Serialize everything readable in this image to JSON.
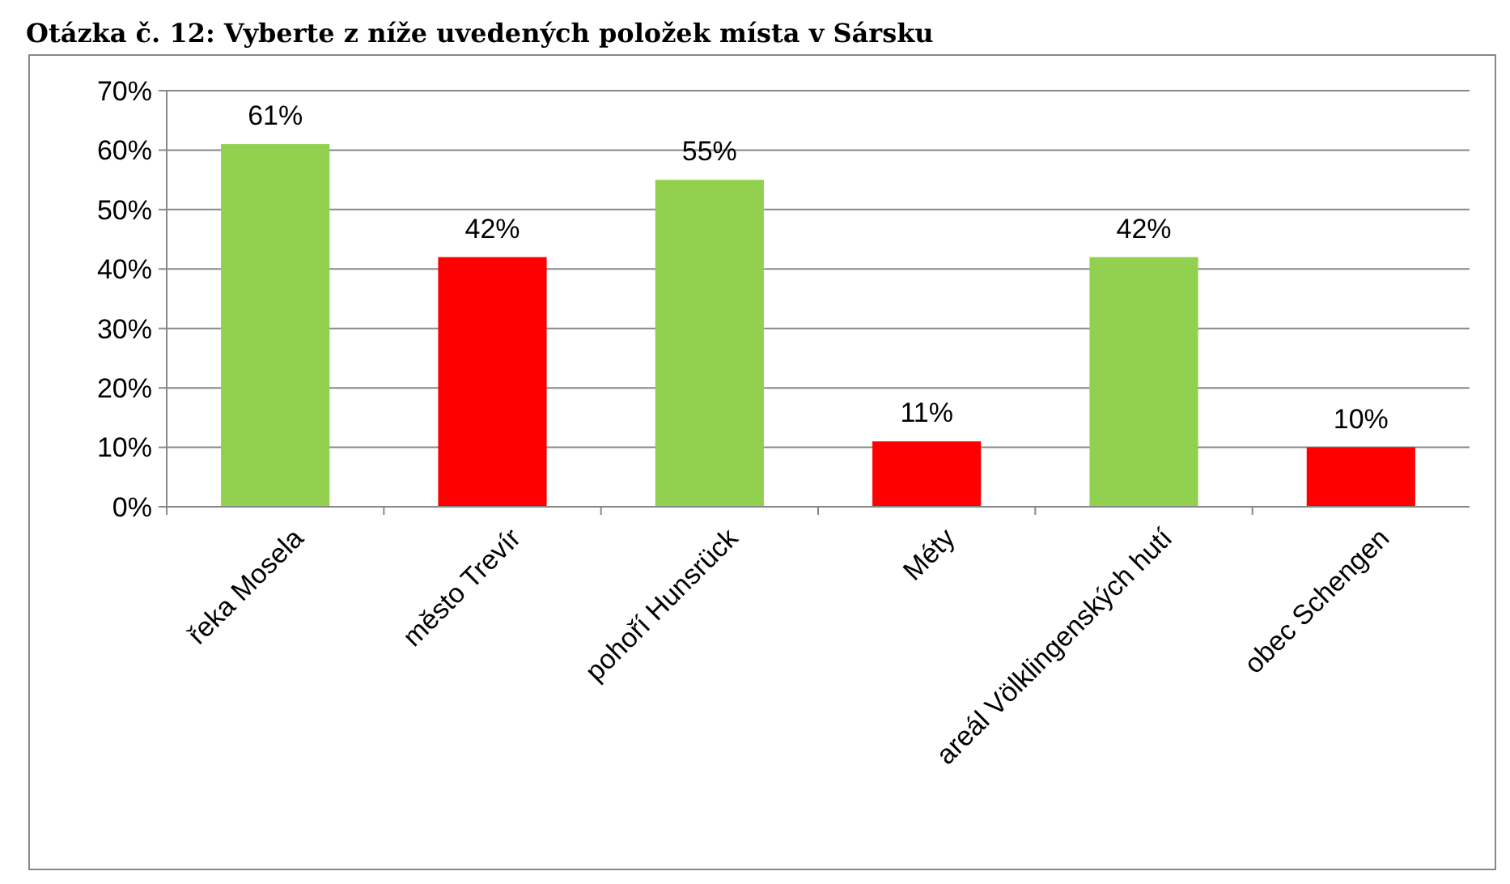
{
  "chart_data": {
    "type": "bar",
    "title": "Otázka č. 12: Vyberte z níže uvedených položek místa v Sársku",
    "categories": [
      "řeka Mosela",
      "město Trevír",
      "pohoří Hunsrück",
      "Méty",
      "areál Völklingenských hutí",
      "obec Schengen"
    ],
    "values": [
      61,
      42,
      55,
      11,
      42,
      10
    ],
    "colors": [
      "#92d050",
      "#ff0000",
      "#92d050",
      "#ff0000",
      "#92d050",
      "#ff0000"
    ],
    "value_labels": [
      "61%",
      "42%",
      "55%",
      "11%",
      "42%",
      "10%"
    ],
    "ylim": [
      0,
      70
    ],
    "yticks": [
      {
        "value": 0,
        "label": "0%"
      },
      {
        "value": 10,
        "label": "10%"
      },
      {
        "value": 20,
        "label": "20%"
      },
      {
        "value": 30,
        "label": "30%"
      },
      {
        "value": 40,
        "label": "40%"
      },
      {
        "value": 50,
        "label": "50%"
      },
      {
        "value": 60,
        "label": "60%"
      },
      {
        "value": 70,
        "label": "70%"
      }
    ],
    "grid": "y"
  }
}
